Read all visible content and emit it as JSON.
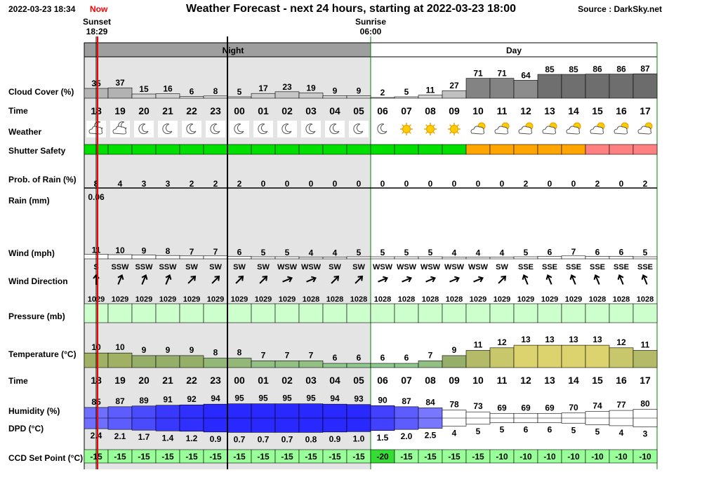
{
  "header": {
    "date": "2022-03-23 18:34",
    "now_label": "Now",
    "title": "Weather Forecast - next 24 hours, starting at 2022-03-23 18:00",
    "source": "Source : DarkSky.net"
  },
  "sun": {
    "sunset_label": "Sunset",
    "sunset_time": "18:29",
    "sunrise_label": "Sunrise",
    "sunrise_time": "06:00"
  },
  "period": {
    "night": "Night",
    "day": "Day"
  },
  "row_labels": {
    "cloud_cover": "Cloud Cover (%)",
    "time": "Time",
    "weather": "Weather",
    "shutter_safety": "Shutter Safety",
    "prob_rain": "Prob. of Rain (%)",
    "rain": "Rain (mm)",
    "wind": "Wind (mph)",
    "wind_direction": "Wind Direction",
    "pressure": "Pressure (mb)",
    "temperature": "Temperature (°C)",
    "time2": "Time",
    "humidity": "Humidity (%)",
    "dpd": "DPD (°C)",
    "ccd": "CCD Set Point (°C)"
  },
  "colors": {
    "night_bg": "#e4e4e4",
    "night_header": "#9e9e9e",
    "safe_green": "#00e000",
    "caution_orange": "#ffa500",
    "unsafe_red": "#ff8080",
    "now_line": "#ff0000",
    "pressure_fill": "#ccffcc",
    "ccd_fill": "#99ff99",
    "ccd_fill_dark": "#33dd33"
  },
  "chart_data": {
    "type": "table",
    "hours": [
      "18",
      "19",
      "20",
      "21",
      "22",
      "23",
      "00",
      "01",
      "02",
      "03",
      "04",
      "05",
      "06",
      "07",
      "08",
      "09",
      "10",
      "11",
      "12",
      "13",
      "14",
      "15",
      "16",
      "17"
    ],
    "cloud_cover": [
      35,
      37,
      15,
      16,
      6,
      8,
      5,
      17,
      23,
      19,
      9,
      9,
      2,
      5,
      11,
      27,
      71,
      71,
      64,
      85,
      85,
      86,
      86,
      87
    ],
    "weather_icons": [
      "partly-cloudy-night-icon",
      "partly-cloudy-night-icon",
      "moon-icon",
      "moon-icon",
      "moon-icon",
      "moon-icon",
      "moon-icon",
      "moon-icon",
      "moon-icon",
      "moon-icon",
      "moon-icon",
      "moon-icon",
      "moon-icon",
      "sun-icon",
      "sun-icon",
      "sun-icon",
      "partly-cloudy-day-icon",
      "partly-cloudy-day-icon",
      "partly-cloudy-day-icon",
      "partly-cloudy-day-icon",
      "partly-cloudy-day-icon",
      "partly-cloudy-day-icon",
      "partly-cloudy-day-icon",
      "partly-cloudy-day-icon"
    ],
    "shutter_safety": [
      "safe",
      "safe",
      "safe",
      "safe",
      "safe",
      "safe",
      "safe",
      "safe",
      "safe",
      "safe",
      "safe",
      "safe",
      "safe",
      "safe",
      "safe",
      "safe",
      "caution",
      "caution",
      "caution",
      "caution",
      "caution",
      "unsafe",
      "unsafe",
      "unsafe"
    ],
    "prob_rain": [
      8,
      4,
      3,
      3,
      2,
      2,
      2,
      0,
      0,
      0,
      0,
      0,
      0,
      0,
      0,
      0,
      0,
      0,
      2,
      0,
      0,
      2,
      0,
      2
    ],
    "rain_mm": [
      "0.06",
      "",
      "",
      "",
      "",
      "",
      "",
      "",
      "",
      "",
      "",
      "",
      "",
      "",
      "",
      "",
      "",
      "",
      "",
      "",
      "",
      "",
      "",
      ""
    ],
    "wind_mph": [
      11,
      10,
      9,
      8,
      7,
      7,
      6,
      5,
      5,
      4,
      4,
      5,
      5,
      5,
      5,
      4,
      4,
      4,
      5,
      6,
      7,
      6,
      6,
      5
    ],
    "wind_direction": [
      "S",
      "SSW",
      "SSW",
      "SSW",
      "SW",
      "SW",
      "SW",
      "SW",
      "WSW",
      "WSW",
      "SW",
      "SW",
      "WSW",
      "WSW",
      "WSW",
      "WSW",
      "WSW",
      "SW",
      "SSE",
      "SSE",
      "SSE",
      "SSE",
      "SSE",
      "SSE"
    ],
    "pressure_mb": [
      1029,
      1029,
      1029,
      1029,
      1029,
      1029,
      1029,
      1029,
      1029,
      1028,
      1028,
      1028,
      1028,
      1028,
      1028,
      1028,
      1029,
      1029,
      1029,
      1029,
      1029,
      1028,
      1028,
      1028
    ],
    "temperature_c": [
      10,
      10,
      9,
      9,
      9,
      8,
      8,
      7,
      7,
      7,
      6,
      6,
      6,
      6,
      7,
      9,
      11,
      12,
      13,
      13,
      13,
      13,
      12,
      11
    ],
    "humidity_pct": [
      85,
      87,
      89,
      91,
      92,
      94,
      95,
      95,
      95,
      95,
      94,
      93,
      90,
      87,
      84,
      78,
      73,
      69,
      69,
      69,
      70,
      74,
      77,
      80
    ],
    "dpd_c": [
      "2.4",
      "2.1",
      "1.7",
      "1.4",
      "1.2",
      "0.9",
      "0.7",
      "0.7",
      "0.7",
      "0.8",
      "0.9",
      "1.0",
      "1.5",
      "2.0",
      "2.5",
      "4",
      "5",
      "5",
      "6",
      "6",
      "5",
      "5",
      "4",
      "3"
    ],
    "ccd_set_point_c": [
      -15,
      -15,
      -15,
      -15,
      -15,
      -15,
      -15,
      -15,
      -15,
      -15,
      -15,
      -15,
      -20,
      -15,
      -15,
      -15,
      -15,
      -10,
      -10,
      -10,
      -10,
      -10,
      -10,
      -10
    ]
  }
}
